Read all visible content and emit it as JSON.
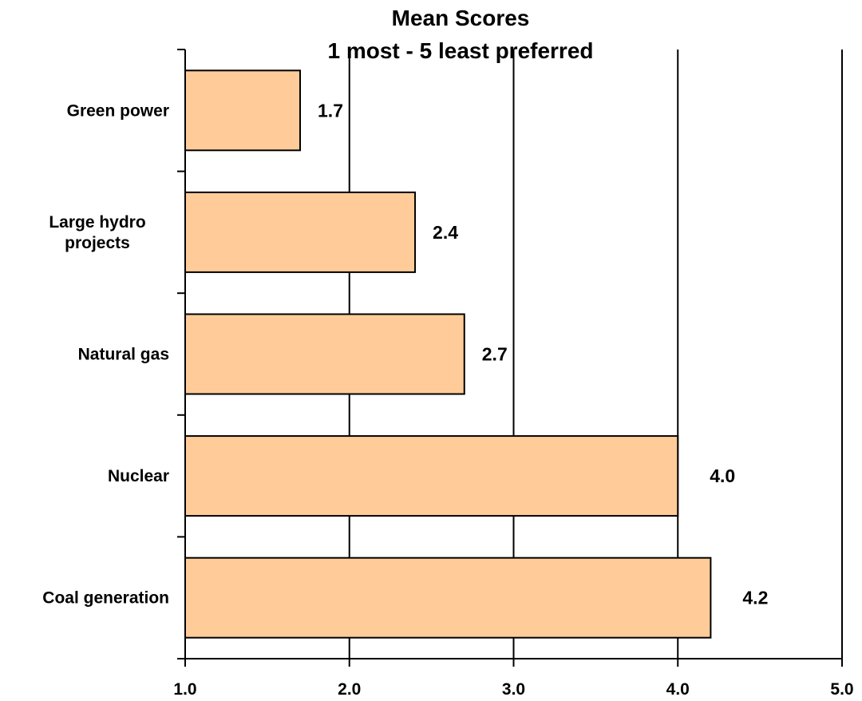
{
  "chart_data": {
    "type": "bar",
    "orientation": "horizontal",
    "title": "Mean Scores",
    "subtitle": "1 most - 5 least preferred",
    "categories": [
      "Green power",
      "Large hydro projects",
      "Natural gas",
      "Nuclear",
      "Coal generation"
    ],
    "category_lines": [
      [
        "Green power"
      ],
      [
        "Large hydro",
        "projects"
      ],
      [
        "Natural gas"
      ],
      [
        "Nuclear"
      ],
      [
        "Coal generation"
      ]
    ],
    "values": [
      1.7,
      2.4,
      2.7,
      4.0,
      4.2
    ],
    "value_labels": [
      "1.7",
      "2.4",
      "2.7",
      "4.0",
      "4.2"
    ],
    "xlim": [
      1.0,
      5.0
    ],
    "xticks": [
      1.0,
      2.0,
      3.0,
      4.0,
      5.0
    ],
    "xtick_labels": [
      "1.0",
      "2.0",
      "3.0",
      "4.0",
      "5.0"
    ],
    "grid": true,
    "legend": "none",
    "colors": {
      "bar_fill": "#FFCC99",
      "bar_stroke": "#000000",
      "grid": "#000000"
    }
  }
}
